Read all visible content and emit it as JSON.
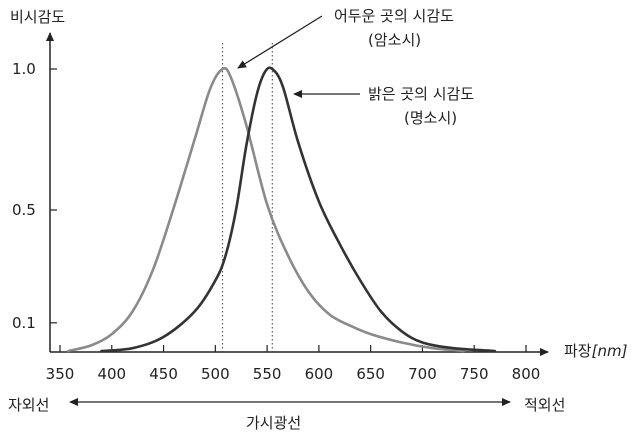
{
  "chart_data": {
    "type": "line",
    "title": "",
    "ylabel": "비시감도",
    "xlabel_prefix": "파장",
    "xlabel_unit": "[nm]",
    "xlim": [
      350,
      800
    ],
    "ylim": [
      0,
      1.0
    ],
    "x_ticks": [
      350,
      400,
      450,
      500,
      550,
      600,
      650,
      700,
      750,
      800
    ],
    "y_ticks": [
      {
        "value": 0.1,
        "label": "0.1"
      },
      {
        "value": 0.5,
        "label": "0.5"
      },
      {
        "value": 1.0,
        "label": "1.0"
      }
    ],
    "grid": false,
    "series": [
      {
        "name": "어두운 곳의 시감도 (암소시)",
        "peak": 507,
        "color": "#8a8a8a",
        "points": [
          [
            358,
            0.0
          ],
          [
            380,
            0.02
          ],
          [
            400,
            0.06
          ],
          [
            420,
            0.14
          ],
          [
            440,
            0.29
          ],
          [
            460,
            0.51
          ],
          [
            480,
            0.75
          ],
          [
            495,
            0.93
          ],
          [
            507,
            1.0
          ],
          [
            515,
            0.97
          ],
          [
            530,
            0.8
          ],
          [
            550,
            0.52
          ],
          [
            570,
            0.34
          ],
          [
            590,
            0.21
          ],
          [
            610,
            0.13
          ],
          [
            630,
            0.09
          ],
          [
            650,
            0.06
          ],
          [
            680,
            0.03
          ],
          [
            710,
            0.01
          ],
          [
            740,
            0.0
          ]
        ]
      },
      {
        "name": "밝은 곳의 시감도 (명소시)",
        "peak": 555,
        "color": "#333333",
        "points": [
          [
            390,
            0.0
          ],
          [
            420,
            0.01
          ],
          [
            450,
            0.05
          ],
          [
            480,
            0.14
          ],
          [
            500,
            0.25
          ],
          [
            510,
            0.34
          ],
          [
            520,
            0.5
          ],
          [
            530,
            0.73
          ],
          [
            540,
            0.91
          ],
          [
            548,
            0.99
          ],
          [
            555,
            1.0
          ],
          [
            565,
            0.94
          ],
          [
            580,
            0.74
          ],
          [
            600,
            0.53
          ],
          [
            620,
            0.38
          ],
          [
            640,
            0.25
          ],
          [
            660,
            0.14
          ],
          [
            680,
            0.07
          ],
          [
            700,
            0.03
          ],
          [
            730,
            0.01
          ],
          [
            770,
            0.0
          ]
        ]
      }
    ],
    "annotations": {
      "dark_line1": "어두운 곳의 시감도",
      "dark_line2": "(암소시)",
      "bright_line1": "밝은 곳의 시감도",
      "bright_line2": "(명소시)"
    },
    "band": {
      "left": "자외선",
      "middle": "가시광선",
      "right": "적외선"
    }
  }
}
